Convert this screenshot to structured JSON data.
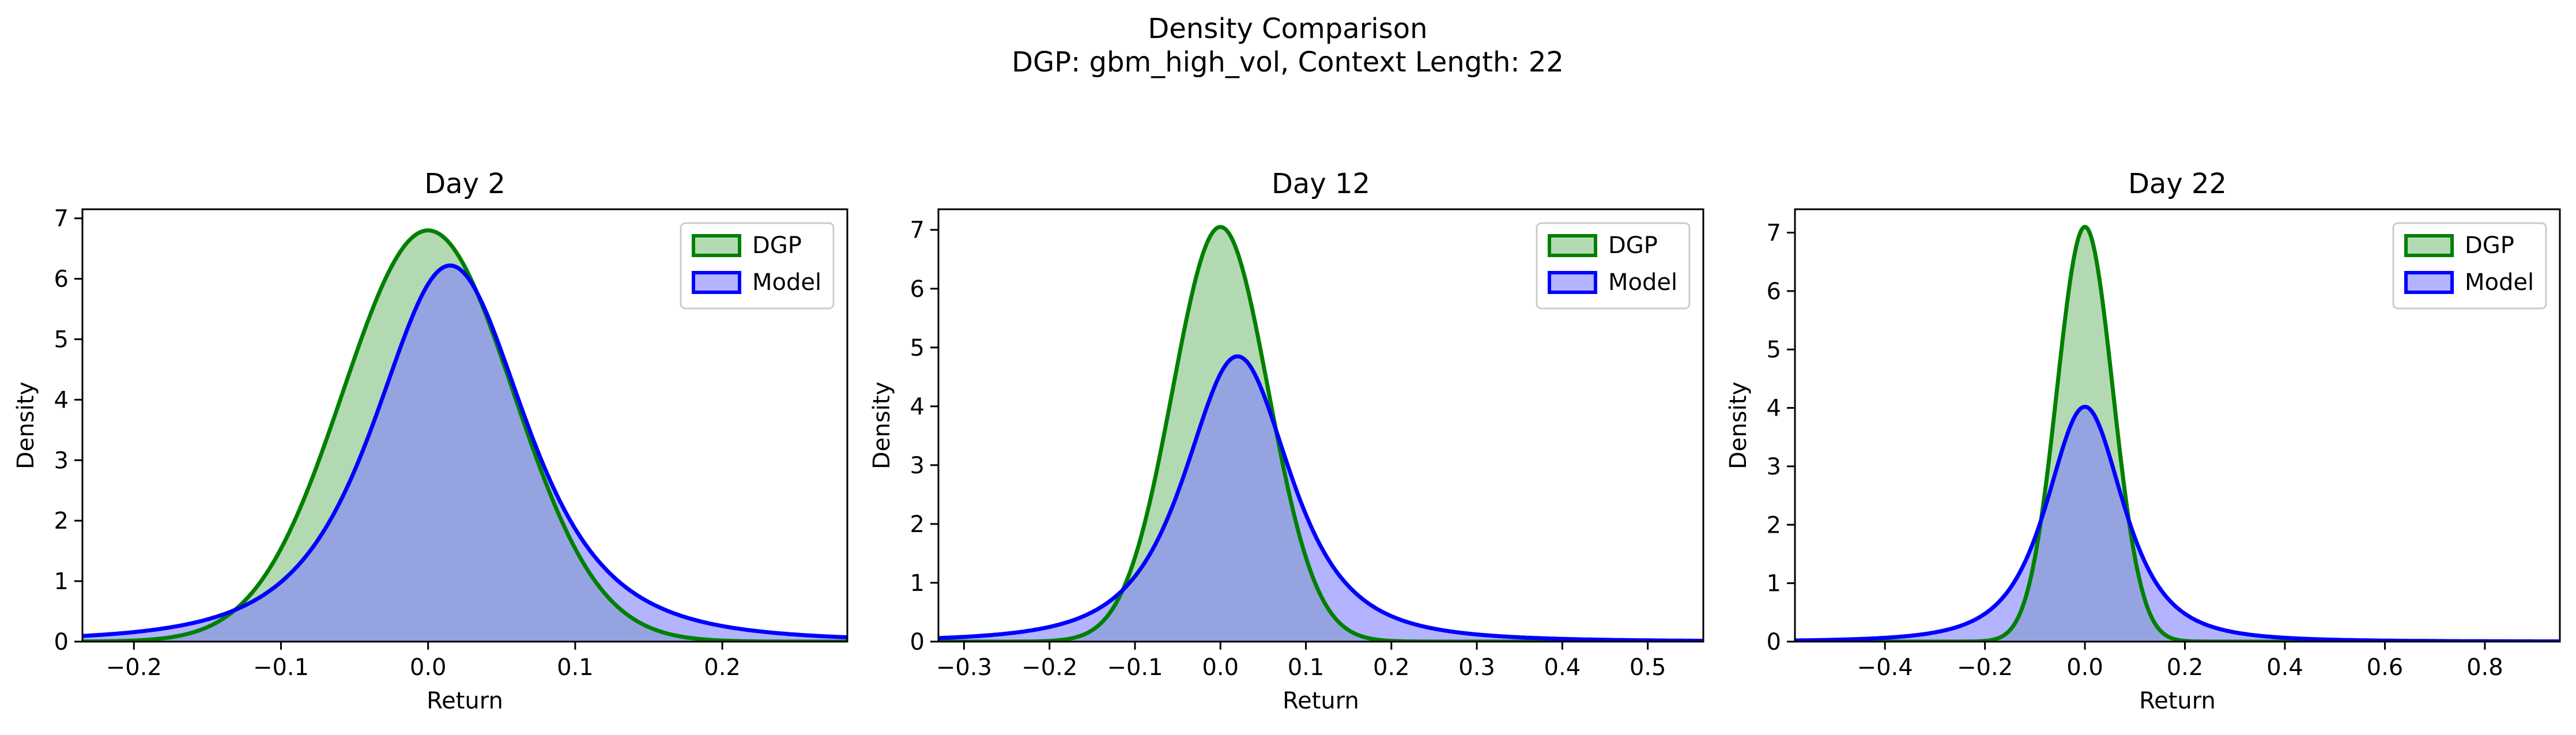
{
  "figure": {
    "title_line1": "Density Comparison",
    "title_line2": "DGP: gbm_high_vol, Context Length: 22"
  },
  "colors": {
    "dgp_line": "#008000",
    "dgp_fill": "#80c080",
    "model_line": "#0000ff",
    "model_fill": "#8080ff"
  },
  "chart_data": [
    {
      "type": "area",
      "title": "Day 2",
      "xlabel": "Return",
      "ylabel": "Density",
      "xlim": [
        -0.235,
        0.285
      ],
      "ylim": [
        0,
        7.15
      ],
      "xticks": [
        -0.2,
        -0.1,
        0.0,
        0.1,
        0.2
      ],
      "xtick_labels": [
        "−0.2",
        "−0.1",
        "0.0",
        "0.1",
        "0.2"
      ],
      "yticks": [
        0,
        1,
        2,
        3,
        4,
        5,
        6,
        7
      ],
      "ytick_labels": [
        "0",
        "1",
        "2",
        "3",
        "4",
        "5",
        "6",
        "7"
      ],
      "legend": {
        "position": "upper-right",
        "entries": [
          "DGP",
          "Model"
        ]
      },
      "series": [
        {
          "name": "DGP",
          "kind": "gaussian",
          "mean": 0.0,
          "peak": 6.8,
          "sd_left": 0.058,
          "sd_right": 0.058
        },
        {
          "name": "Model",
          "kind": "t",
          "mean": 0.015,
          "peak": 6.22,
          "scale": 0.054,
          "df": 3
        }
      ]
    },
    {
      "type": "area",
      "title": "Day 12",
      "xlabel": "Return",
      "ylabel": "Density",
      "xlim": [
        -0.33,
        0.565
      ],
      "ylim": [
        0,
        7.35
      ],
      "xticks": [
        -0.3,
        -0.2,
        -0.1,
        0.0,
        0.1,
        0.2,
        0.3,
        0.4,
        0.5
      ],
      "xtick_labels": [
        "−0.3",
        "−0.2",
        "−0.1",
        "0.0",
        "0.1",
        "0.2",
        "0.3",
        "0.4",
        "0.5"
      ],
      "yticks": [
        0,
        1,
        2,
        3,
        4,
        5,
        6,
        7
      ],
      "ytick_labels": [
        "0",
        "1",
        "2",
        "3",
        "4",
        "5",
        "6",
        "7"
      ],
      "legend": {
        "position": "upper-right",
        "entries": [
          "DGP",
          "Model"
        ]
      },
      "series": [
        {
          "name": "DGP",
          "kind": "gaussian",
          "mean": 0.0,
          "peak": 7.05,
          "sd_left": 0.056,
          "sd_right": 0.056
        },
        {
          "name": "Model",
          "kind": "t",
          "mean": 0.02,
          "peak": 4.85,
          "scale": 0.066,
          "df": 2.5
        }
      ]
    },
    {
      "type": "area",
      "title": "Day 22",
      "xlabel": "Return",
      "ylabel": "Density",
      "xlim": [
        -0.58,
        0.95
      ],
      "ylim": [
        0,
        7.4
      ],
      "xticks": [
        -0.4,
        -0.2,
        0.0,
        0.2,
        0.4,
        0.6,
        0.8
      ],
      "xtick_labels": [
        "−0.4",
        "−0.2",
        "0.0",
        "0.2",
        "0.4",
        "0.6",
        "0.8"
      ],
      "yticks": [
        0,
        1,
        2,
        3,
        4,
        5,
        6,
        7
      ],
      "ytick_labels": [
        "0",
        "1",
        "2",
        "3",
        "4",
        "5",
        "6",
        "7"
      ],
      "legend": {
        "position": "upper-right",
        "entries": [
          "DGP",
          "Model"
        ]
      },
      "series": [
        {
          "name": "DGP",
          "kind": "gaussian",
          "mean": 0.0,
          "peak": 7.1,
          "sd_left": 0.056,
          "sd_right": 0.056
        },
        {
          "name": "Model",
          "kind": "t",
          "mean": 0.0,
          "peak": 4.02,
          "scale": 0.082,
          "df": 2.5
        }
      ]
    }
  ]
}
